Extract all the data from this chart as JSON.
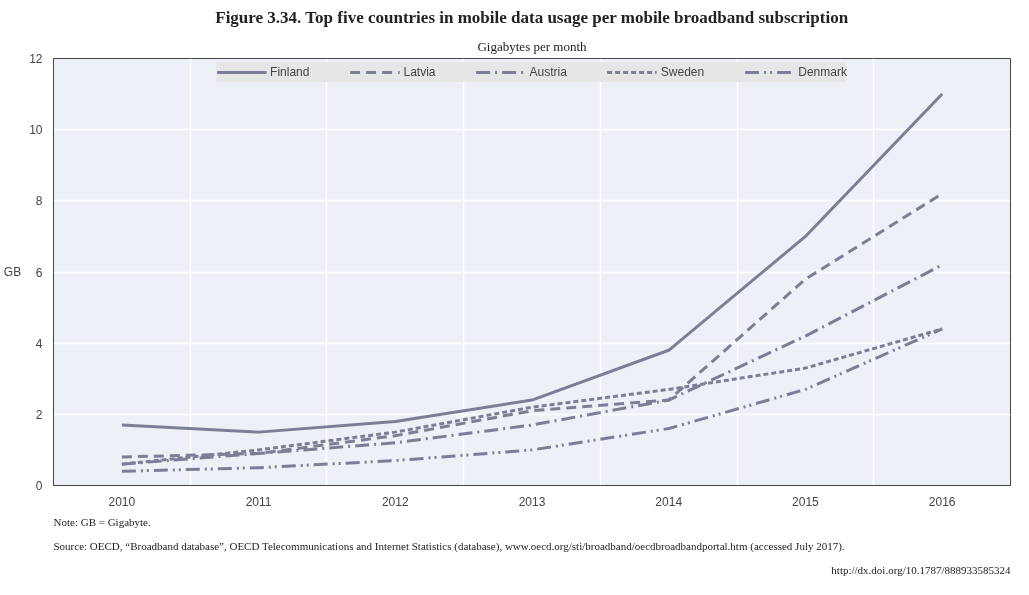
{
  "chart_data": {
    "type": "line",
    "title": "Figure 3.34. Top five countries in mobile data usage per mobile broadband subscription",
    "subtitle": "Gigabytes per month",
    "ylabel": "GB",
    "categories": [
      "2010",
      "2011",
      "2012",
      "2013",
      "2014",
      "2015",
      "2016"
    ],
    "series": [
      {
        "name": "Finland",
        "color": "#7b7f96",
        "line_style": "solid",
        "values": [
          1.7,
          1.5,
          1.8,
          2.4,
          3.8,
          7.0,
          11.0
        ]
      },
      {
        "name": "Latvia",
        "color": "#7b7f96",
        "line_style": "dashed",
        "values": [
          0.8,
          0.9,
          1.4,
          2.1,
          2.4,
          5.8,
          8.2
        ]
      },
      {
        "name": "Austria",
        "color": "#7b7f96",
        "line_style": "dashdot",
        "values": [
          0.6,
          0.9,
          1.2,
          1.7,
          2.4,
          4.2,
          6.2
        ]
      },
      {
        "name": "Sweden",
        "color": "#7b7f96",
        "line_style": "dotted",
        "values": [
          0.6,
          1.0,
          1.5,
          2.2,
          2.7,
          3.3,
          4.4
        ]
      },
      {
        "name": "Denmark",
        "color": "#7b7f96",
        "line_style": "dashdotdot",
        "values": [
          0.4,
          0.5,
          0.7,
          1.0,
          1.6,
          2.7,
          4.4
        ]
      }
    ],
    "ylim": [
      0,
      12
    ],
    "yticks": [
      0,
      2,
      4,
      6,
      8,
      10,
      12
    ],
    "grid": true,
    "legend": "top",
    "marker": "none",
    "annotations": [
      "Note: GB = Gigabyte.",
      "Source: OECD, “Broadband database”, OECD Telecommunications and Internet Statistics (database), www.oecd.org/sti/broadband/oecdbroadbandportal.htm (accessed July 2017).",
      "http://dx.doi.org/10.1787/888933585324"
    ]
  }
}
